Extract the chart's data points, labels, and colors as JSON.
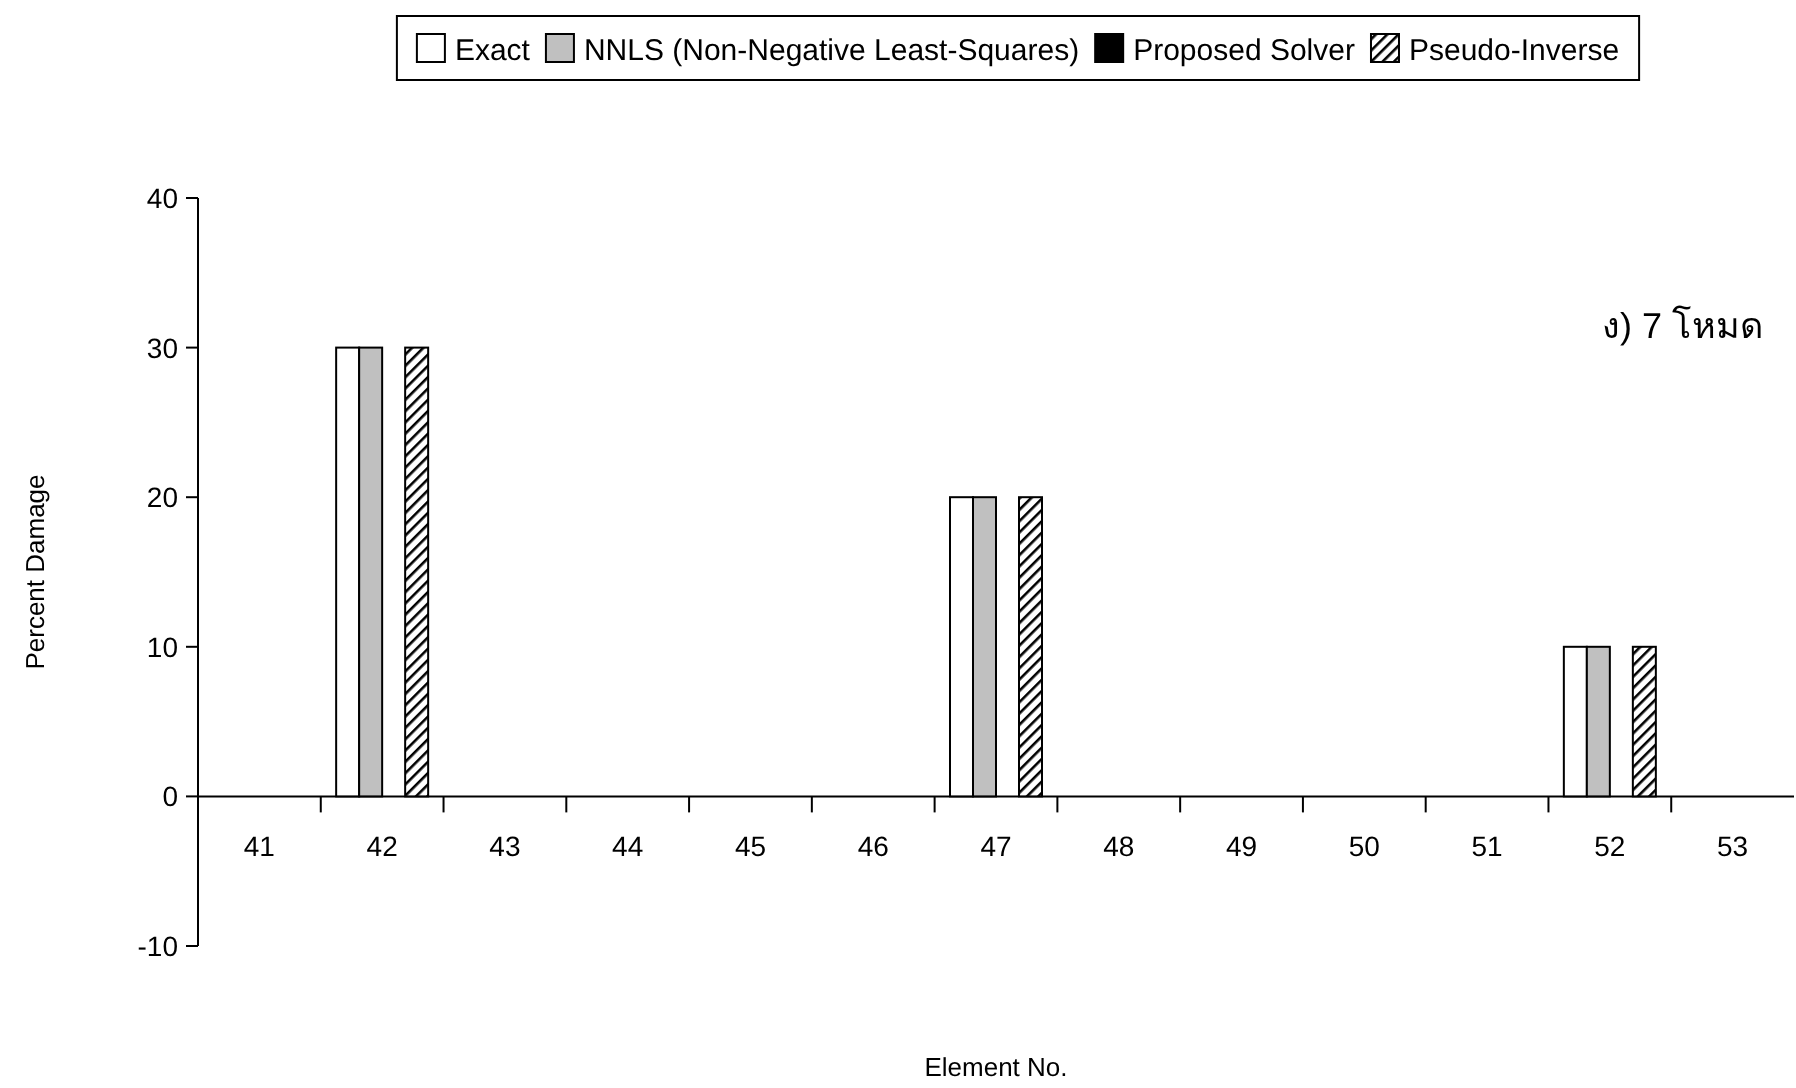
{
  "chart_data": {
    "type": "bar",
    "annotations": [
      "ง) 7 โหมด"
    ],
    "xlabel": "Element No.",
    "ylabel": "Percent Damage",
    "categories": [
      "41",
      "42",
      "43",
      "44",
      "45",
      "46",
      "47",
      "48",
      "49",
      "50",
      "51",
      "52",
      "53"
    ],
    "series": [
      {
        "name": "Exact",
        "color": "#ffffff",
        "values": [
          0,
          30,
          0,
          0,
          0,
          0,
          20,
          0,
          0,
          0,
          0,
          10,
          0
        ]
      },
      {
        "name": "NNLS (Non-Negative Least-Squares)",
        "color": "#c0c0c0",
        "values": [
          0,
          30,
          0,
          0,
          0,
          0,
          20,
          0,
          0,
          0,
          0,
          10,
          0
        ]
      },
      {
        "name": "Proposed Solver",
        "color": "#000000",
        "values": [
          0,
          0,
          0,
          0,
          0,
          0,
          0,
          0,
          0,
          0,
          0,
          0,
          0
        ]
      },
      {
        "name": "Pseudo-Inverse",
        "color": "#000000",
        "values": [
          0,
          30,
          0,
          0,
          0,
          0,
          20,
          0,
          0,
          0,
          0,
          10,
          0
        ]
      }
    ],
    "ylim": [
      -10,
      40
    ],
    "yticks": [
      -10,
      0,
      10,
      20,
      30,
      40
    ],
    "grid": false,
    "legend": "top"
  }
}
